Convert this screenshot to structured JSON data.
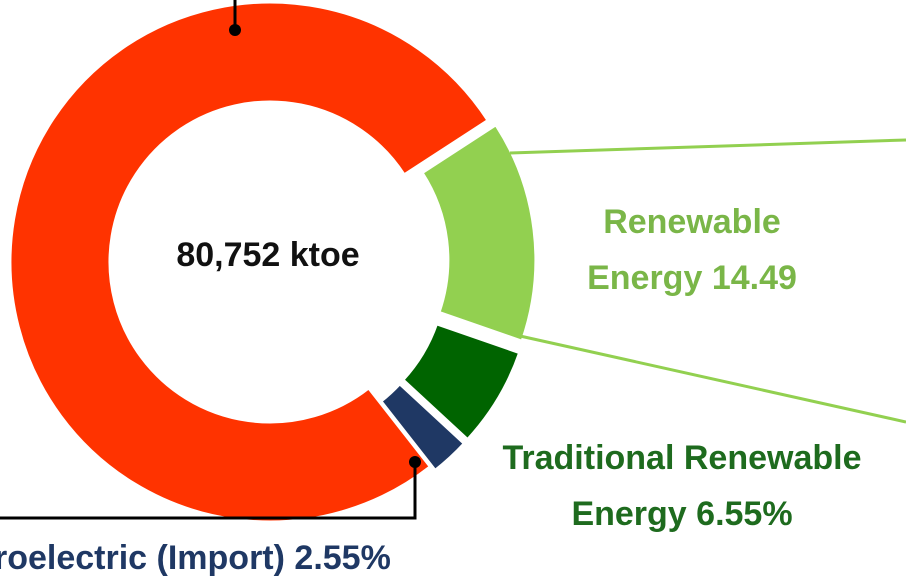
{
  "chart_data": {
    "type": "donut",
    "center_label": "80,752 ktoe",
    "categories": [
      null,
      "Renewable Energy",
      "Traditional Renewable Energy",
      "roelectric (Import)"
    ],
    "values": [
      76.41,
      14.49,
      6.55,
      2.55
    ],
    "value_labels": [
      null,
      "14.49",
      "6.55%",
      "2.55%"
    ],
    "colors": [
      "#ff3300",
      "#92d050",
      "#006400",
      "#1f3864"
    ],
    "label_colors": [
      null,
      "#7ab648",
      "#1e6b1e",
      "#1f3864"
    ]
  }
}
